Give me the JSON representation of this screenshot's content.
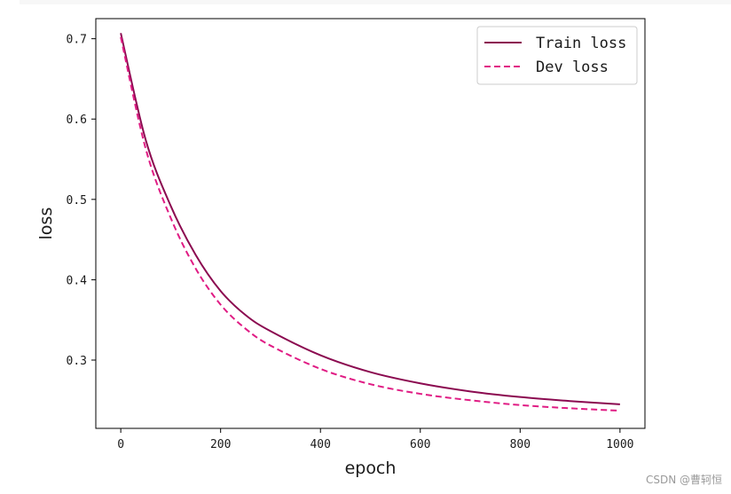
{
  "watermark": "CSDN @曹轲恒",
  "chart_data": {
    "type": "line",
    "title": "",
    "xlabel": "epoch",
    "ylabel": "loss",
    "xlim": [
      -50,
      1050
    ],
    "ylim": [
      0.215,
      0.725
    ],
    "x_ticks": [
      0,
      200,
      400,
      600,
      800,
      1000
    ],
    "y_ticks": [
      0.3,
      0.4,
      0.5,
      0.6,
      0.7
    ],
    "y_tick_labels": [
      "0.3",
      "0.4",
      "0.5",
      "0.6",
      "0.7"
    ],
    "grid": false,
    "legend_position": "upper right",
    "series": [
      {
        "name": "Train loss",
        "color": "#8b0a50",
        "line_style": "solid",
        "x": [
          0,
          50,
          100,
          150,
          200,
          250,
          300,
          400,
          500,
          600,
          700,
          800,
          900,
          1000
        ],
        "y": [
          0.707,
          0.574,
          0.492,
          0.431,
          0.386,
          0.356,
          0.336,
          0.306,
          0.285,
          0.271,
          0.261,
          0.254,
          0.249,
          0.245
        ]
      },
      {
        "name": "Dev loss",
        "color": "#e01c84",
        "line_style": "dashed",
        "x": [
          0,
          50,
          100,
          150,
          200,
          250,
          300,
          400,
          500,
          600,
          700,
          800,
          900,
          1000
        ],
        "y": [
          0.702,
          0.563,
          0.477,
          0.414,
          0.369,
          0.339,
          0.318,
          0.289,
          0.27,
          0.258,
          0.25,
          0.244,
          0.24,
          0.237
        ]
      }
    ]
  }
}
